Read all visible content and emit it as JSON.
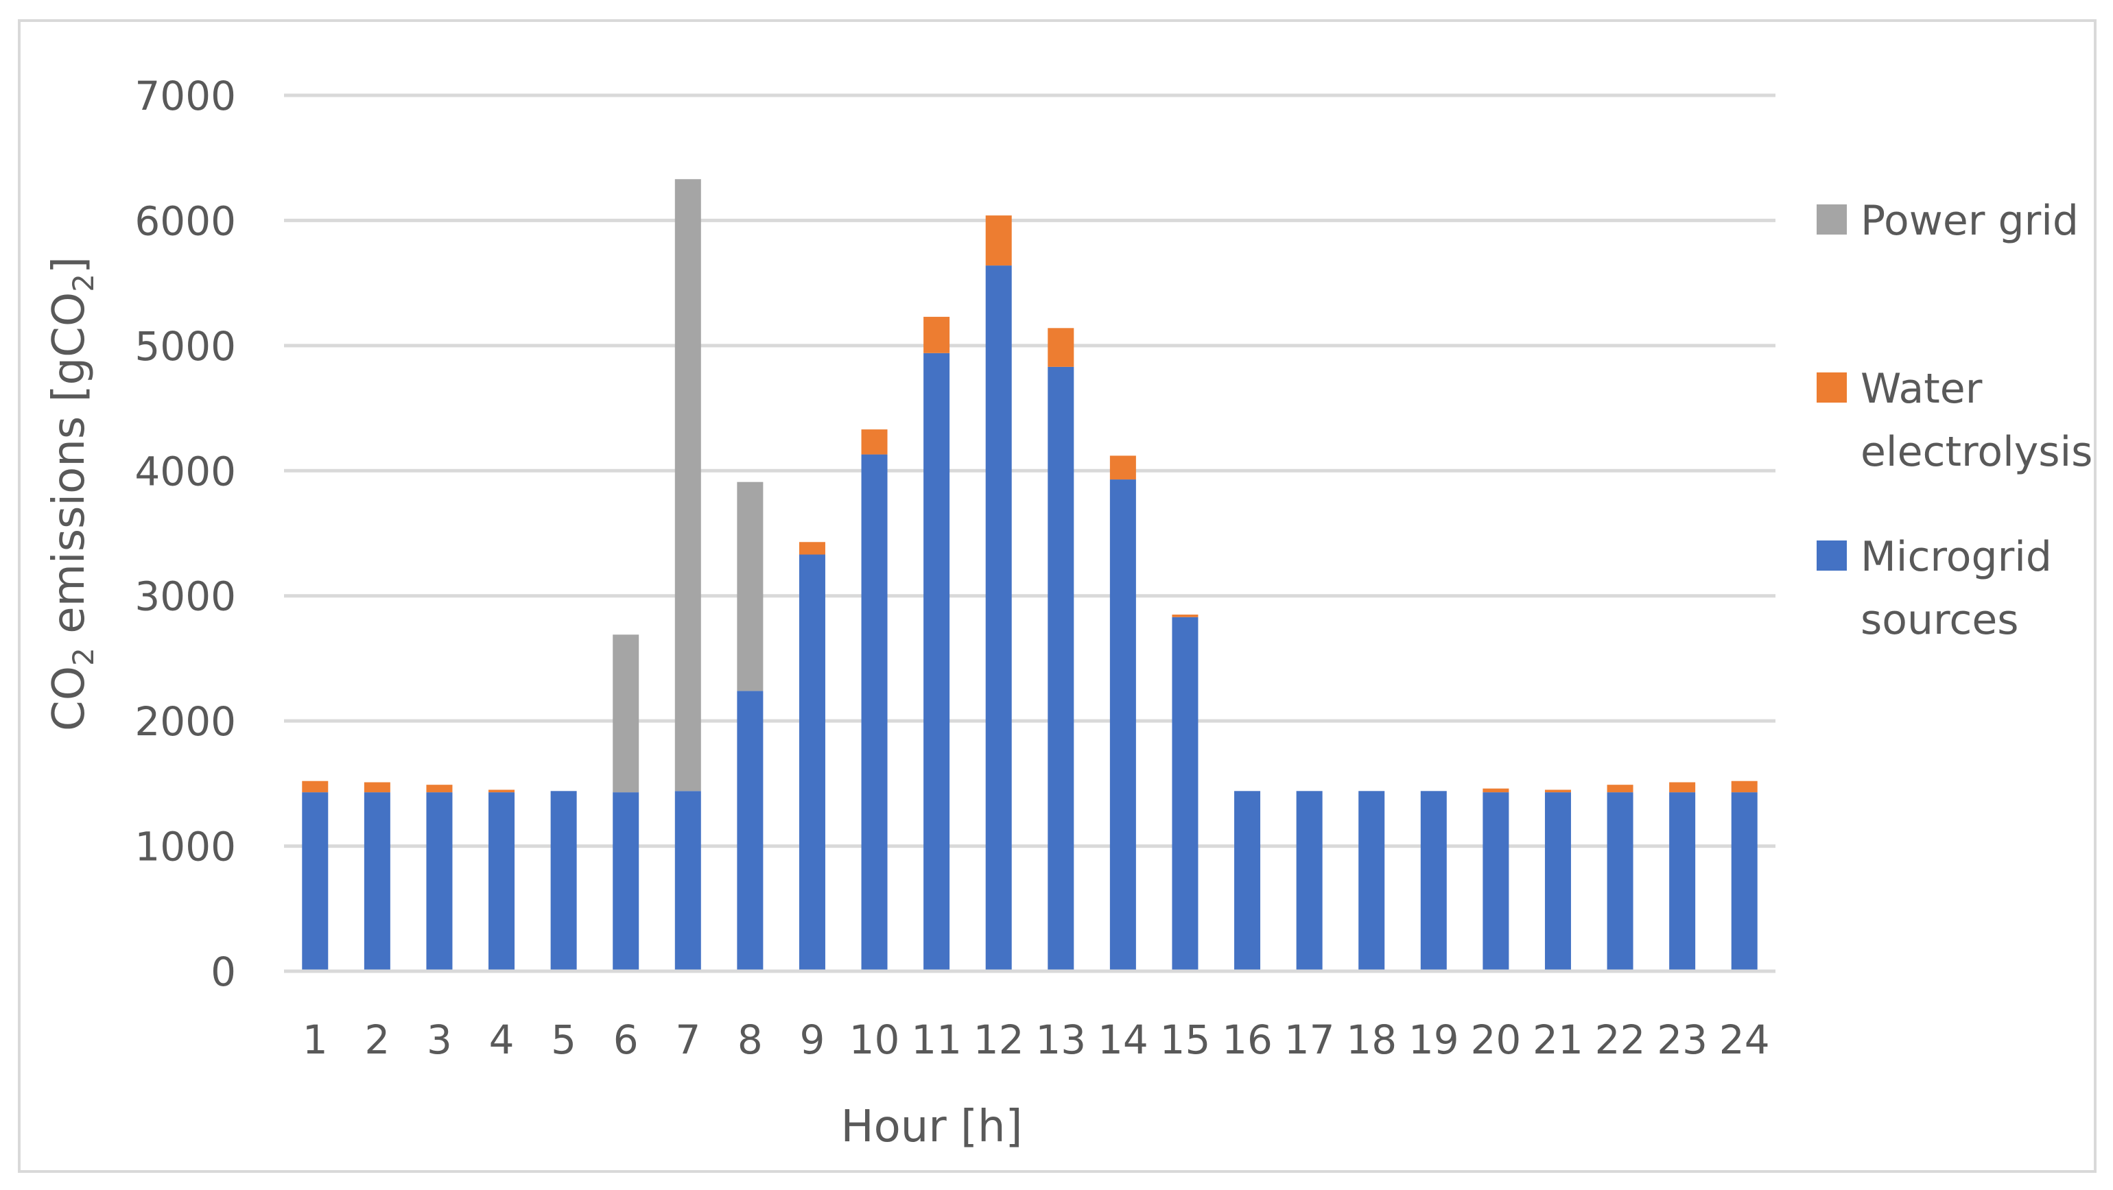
{
  "chart_data": {
    "type": "bar",
    "stacked": true,
    "categories": [
      "1",
      "2",
      "3",
      "4",
      "5",
      "6",
      "7",
      "8",
      "9",
      "10",
      "11",
      "12",
      "13",
      "14",
      "15",
      "16",
      "17",
      "18",
      "19",
      "20",
      "21",
      "22",
      "23",
      "24"
    ],
    "series": [
      {
        "name": "Microgrid sources",
        "color": "#4472C4",
        "values": [
          1430,
          1430,
          1430,
          1430,
          1440,
          1430,
          1440,
          2240,
          3330,
          4130,
          4940,
          5640,
          4830,
          3930,
          2830,
          1440,
          1440,
          1440,
          1440,
          1430,
          1430,
          1430,
          1430,
          1430
        ]
      },
      {
        "name": "Water electrolysis",
        "color": "#ED7D31",
        "values": [
          90,
          80,
          60,
          20,
          0,
          0,
          0,
          0,
          100,
          200,
          290,
          400,
          310,
          190,
          20,
          0,
          0,
          0,
          0,
          30,
          20,
          60,
          80,
          90
        ]
      },
      {
        "name": "Power grid",
        "color": "#A5A5A5",
        "values": [
          0,
          0,
          0,
          0,
          0,
          1260,
          4890,
          1670,
          0,
          0,
          0,
          0,
          0,
          0,
          0,
          0,
          0,
          0,
          0,
          0,
          0,
          0,
          0,
          0
        ]
      }
    ],
    "xlabel": "Hour [h]",
    "ylabel_prefix": "CO",
    "ylabel_sub": "2",
    "ylabel_mid": " emissions [gCO",
    "ylabel_sub2": "2",
    "ylabel_suffix": "]",
    "ylim": [
      0,
      7000
    ],
    "yticks": [
      "0",
      "1000",
      "2000",
      "3000",
      "4000",
      "5000",
      "6000",
      "7000"
    ],
    "ytick_values": [
      0,
      1000,
      2000,
      3000,
      4000,
      5000,
      6000,
      7000
    ],
    "grid": true,
    "legend_position": "right",
    "legend": [
      {
        "series": 2,
        "lines": [
          "Power grid"
        ]
      },
      {
        "series": 1,
        "lines": [
          "Water",
          "electrolysis"
        ]
      },
      {
        "series": 0,
        "lines": [
          "Microgrid",
          "sources"
        ]
      }
    ]
  }
}
